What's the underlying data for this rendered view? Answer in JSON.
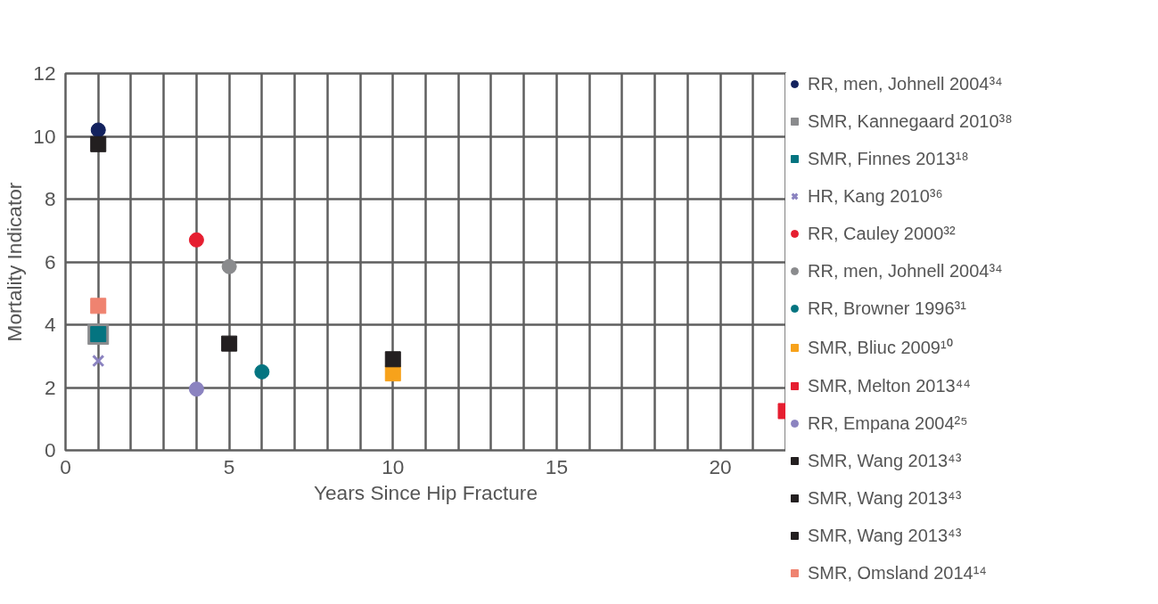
{
  "chart_data": {
    "type": "scatter",
    "xlabel": "Years Since Hip Fracture",
    "ylabel": "Mortality Indicator",
    "xlim": [
      0,
      22
    ],
    "ylim": [
      0,
      12
    ],
    "xticks": [
      0,
      {
        "value": 1,
        "label": null
      },
      {
        "value": 2,
        "label": null
      },
      {
        "value": 3,
        "label": null
      },
      {
        "value": 4,
        "label": null
      },
      5,
      {
        "value": 6,
        "label": null
      },
      {
        "value": 7,
        "label": null
      },
      {
        "value": 8,
        "label": null
      },
      {
        "value": 9,
        "label": null
      },
      10,
      {
        "value": 11,
        "label": null
      },
      {
        "value": 12,
        "label": null
      },
      {
        "value": 13,
        "label": null
      },
      {
        "value": 14,
        "label": null
      },
      15,
      {
        "value": 16,
        "label": null
      },
      {
        "value": 17,
        "label": null
      },
      {
        "value": 18,
        "label": null
      },
      {
        "value": 19,
        "label": null
      },
      20,
      {
        "value": 21,
        "label": null
      },
      {
        "value": 22,
        "label": null
      }
    ],
    "yticks": [
      0,
      2,
      4,
      6,
      8,
      10,
      12
    ],
    "grid": true,
    "legend": "right",
    "series": [
      {
        "name": "RR, men, Johnell 2004³⁴",
        "color": "#13225e",
        "marker": "circle",
        "x": [
          1
        ],
        "values": [
          10.2
        ]
      },
      {
        "name": "SMR, Kannegaard 2010³⁸",
        "color": "#8a8b8d",
        "marker": "square",
        "x": [
          1
        ],
        "values": [
          3.7
        ]
      },
      {
        "name": "SMR, Finnes 2013¹⁸",
        "color": "#047480",
        "marker": "square",
        "x": [
          1
        ],
        "values": [
          3.7
        ]
      },
      {
        "name": "HR, Kang 2010³⁶",
        "color": "#8b83c0",
        "marker": "cross",
        "x": [
          1
        ],
        "values": [
          2.85
        ]
      },
      {
        "name": "RR, Cauley 2000³²",
        "color": "#e61e30",
        "marker": "circle",
        "x": [
          4
        ],
        "values": [
          6.7
        ]
      },
      {
        "name": "RR, men, Johnell 2004³⁴",
        "color": "#8a8b8d",
        "marker": "circle",
        "x": [
          5
        ],
        "values": [
          5.85
        ]
      },
      {
        "name": "RR, Browner 1996³¹",
        "color": "#047480",
        "marker": "circle",
        "x": [
          6
        ],
        "values": [
          2.5
        ]
      },
      {
        "name": "SMR, Bliuc 2009¹⁰",
        "color": "#f7a21b",
        "marker": "square",
        "x": [
          10
        ],
        "values": [
          2.45
        ]
      },
      {
        "name": "SMR, Melton 2013⁴⁴",
        "color": "#e61e30",
        "marker": "square",
        "x": [
          22
        ],
        "values": [
          1.25
        ]
      },
      {
        "name": "RR, Empana 2004²⁵",
        "color": "#8b83c0",
        "marker": "circle",
        "x": [
          4
        ],
        "values": [
          1.95
        ]
      },
      {
        "name": "SMR, Wang 2013⁴³",
        "color": "#231f20",
        "marker": "square",
        "x": [
          1
        ],
        "values": [
          9.75
        ]
      },
      {
        "name": "SMR, Wang 2013⁴³",
        "color": "#231f20",
        "marker": "square",
        "x": [
          5
        ],
        "values": [
          3.4
        ]
      },
      {
        "name": "SMR, Wang 2013⁴³",
        "color": "#231f20",
        "marker": "square",
        "x": [
          10
        ],
        "values": [
          2.9
        ]
      },
      {
        "name": "SMR, Omsland 2014¹⁴",
        "color": "#ef8370",
        "marker": "square",
        "x": [
          1
        ],
        "values": [
          4.6
        ]
      }
    ]
  }
}
